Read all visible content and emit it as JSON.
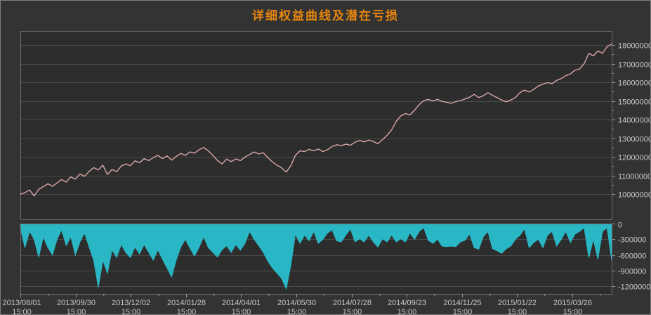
{
  "window": {
    "title": "详细权益曲线及潜在亏损"
  },
  "colors": {
    "background": "#333333",
    "plot_background": "#2d2d2d",
    "gridline": "#4a4a4a",
    "plot_border": "#6f6f6f",
    "tick_mark": "#9a9a9a",
    "tick_label": "#c9c9c9",
    "title": "#e8860d",
    "equity_line": "#d9a7a7",
    "drawdown_fill": "#2ab7c5"
  },
  "x_axis": {
    "tick_dates": [
      "2013/08/01",
      "2013/09/30",
      "2013/12/02",
      "2014/01/28",
      "2014/04/01",
      "2014/05/30",
      "2014/07/28",
      "2014/09/23",
      "2014/11/25",
      "2015/01/22",
      "2015/03/26"
    ],
    "tick_time": "15:00"
  },
  "chart_data": [
    {
      "type": "line",
      "name": "equity-curve",
      "title": "详细权益曲线及潜在亏损",
      "legend_position": "none",
      "grid": true,
      "y_axis_side": "right",
      "y_ticks": [
        18000000,
        17000000,
        16000000,
        15000000,
        14000000,
        13000000,
        12000000,
        11000000,
        10000000
      ],
      "ylim": [
        8600000,
        18750000
      ],
      "values": [
        10000000,
        10080000,
        10220000,
        9900000,
        10250000,
        10400000,
        10550000,
        10420000,
        10600000,
        10780000,
        10640000,
        10920000,
        10800000,
        11080000,
        10950000,
        11220000,
        11420000,
        11300000,
        11550000,
        11050000,
        11320000,
        11200000,
        11500000,
        11620000,
        11520000,
        11780000,
        11680000,
        11900000,
        11800000,
        11950000,
        12080000,
        11900000,
        12050000,
        11820000,
        12020000,
        12180000,
        12080000,
        12260000,
        12200000,
        12380000,
        12500000,
        12320000,
        12080000,
        11800000,
        11620000,
        11880000,
        11740000,
        11880000,
        11800000,
        11980000,
        12120000,
        12260000,
        12150000,
        12220000,
        11950000,
        11720000,
        11550000,
        11400000,
        11180000,
        11520000,
        12080000,
        12320000,
        12280000,
        12400000,
        12320000,
        12420000,
        12280000,
        12380000,
        12550000,
        12650000,
        12600000,
        12680000,
        12620000,
        12780000,
        12880000,
        12800000,
        12900000,
        12820000,
        12700000,
        12920000,
        13150000,
        13450000,
        13900000,
        14200000,
        14320000,
        14250000,
        14500000,
        14800000,
        15020000,
        15080000,
        15000000,
        15080000,
        14970000,
        14930000,
        14870000,
        14960000,
        15020000,
        15100000,
        15200000,
        15350000,
        15180000,
        15280000,
        15440000,
        15300000,
        15180000,
        15050000,
        14950000,
        15050000,
        15180000,
        15450000,
        15580000,
        15480000,
        15620000,
        15800000,
        15900000,
        15980000,
        15920000,
        16100000,
        16200000,
        16350000,
        16450000,
        16650000,
        16720000,
        17000000,
        17550000,
        17420000,
        17680000,
        17550000,
        17920000,
        18050000
      ]
    },
    {
      "type": "area",
      "name": "potential-loss",
      "grid": true,
      "y_axis_side": "right",
      "y_ticks": [
        0,
        -300000,
        -600000,
        -900000,
        -1200000
      ],
      "ylim": [
        -1350000,
        0
      ],
      "values": [
        -80000,
        -460000,
        -150000,
        -300000,
        -640000,
        -250000,
        -460000,
        -600000,
        -300000,
        -120000,
        -420000,
        -250000,
        -600000,
        -350000,
        -180000,
        -450000,
        -700000,
        -1220000,
        -700000,
        -950000,
        -500000,
        -650000,
        -400000,
        -550000,
        -650000,
        -450000,
        -580000,
        -400000,
        -550000,
        -700000,
        -500000,
        -680000,
        -850000,
        -1020000,
        -700000,
        -450000,
        -300000,
        -470000,
        -620000,
        -450000,
        -250000,
        -460000,
        -550000,
        -640000,
        -500000,
        -420000,
        -550000,
        -400000,
        -510000,
        -380000,
        -150000,
        -300000,
        -420000,
        -550000,
        -720000,
        -850000,
        -950000,
        -1050000,
        -1250000,
        -800000,
        -200000,
        -380000,
        -220000,
        -330000,
        -150000,
        -380000,
        -300000,
        -180000,
        -120000,
        -330000,
        -350000,
        -220000,
        -100000,
        -350000,
        -290000,
        -350000,
        -220000,
        -350000,
        -450000,
        -290000,
        -350000,
        -220000,
        -350000,
        -290000,
        -350000,
        -180000,
        -300000,
        -150000,
        -80000,
        -320000,
        -380000,
        -300000,
        -430000,
        -440000,
        -430000,
        -440000,
        -350000,
        -320000,
        -200000,
        -460000,
        -490000,
        -250000,
        -150000,
        -480000,
        -520000,
        -570000,
        -480000,
        -430000,
        -300000,
        -220000,
        -100000,
        -460000,
        -360000,
        -300000,
        -460000,
        -220000,
        -150000,
        -430000,
        -300000,
        -150000,
        -360000,
        -200000,
        -150000,
        -80000,
        -650000,
        -300000,
        -680000,
        -150000,
        -80000,
        -700000
      ]
    }
  ]
}
